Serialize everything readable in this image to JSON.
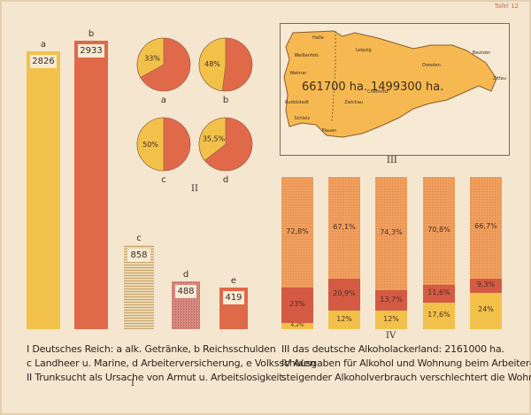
{
  "header": {
    "plate": "Tafel 12"
  },
  "colors": {
    "yellow": "#f2c14a",
    "red": "#e0694a",
    "orange_light": "#f2a15e",
    "red_dark": "#d45a44",
    "stone": "#c9a66b",
    "pink": "#d98a80",
    "map_fill": "#f6b951"
  },
  "chart_data": [
    {
      "type": "bar",
      "label": "I",
      "bars": [
        {
          "letter": "a",
          "value": 2826,
          "label": "2826",
          "color": "#f2c14a",
          "pattern": "solid"
        },
        {
          "letter": "b",
          "value": 2933,
          "label": "2933",
          "color": "#e0694a",
          "pattern": "solid"
        },
        {
          "letter": "c",
          "value": 858,
          "label": "858",
          "color": "#c9a66b",
          "pattern": "lines"
        },
        {
          "letter": "d",
          "value": 488,
          "label": "488",
          "color": "#d98a80",
          "pattern": "dots"
        },
        {
          "letter": "e",
          "value": 419,
          "label": "419",
          "color": "#e0694a",
          "pattern": "solid"
        }
      ],
      "ylim": [
        0,
        2933
      ]
    },
    {
      "type": "pie",
      "label": "II",
      "pies": [
        {
          "letter": "a",
          "value": 33,
          "label": "33%"
        },
        {
          "letter": "b",
          "value": 48,
          "label": "48%"
        },
        {
          "letter": "c",
          "value": 50,
          "label": "50%"
        },
        {
          "letter": "d",
          "value": 35.5,
          "label": "35,5%"
        }
      ]
    },
    {
      "type": "bar",
      "stacked": true,
      "label": "IV",
      "columns": [
        {
          "segments": [
            {
              "value": 4.2,
              "label": "4,2%"
            },
            {
              "value": 23,
              "label": "23%"
            },
            {
              "value": 72.8,
              "label": "72,8%"
            }
          ]
        },
        {
          "segments": [
            {
              "value": 12,
              "label": "12%"
            },
            {
              "value": 20.9,
              "label": "20,9%"
            },
            {
              "value": 67.1,
              "label": "67,1%"
            }
          ]
        },
        {
          "segments": [
            {
              "value": 12,
              "label": "12%"
            },
            {
              "value": 13.7,
              "label": "13,7%"
            },
            {
              "value": 74.3,
              "label": "74,3%"
            }
          ]
        },
        {
          "segments": [
            {
              "value": 17.6,
              "label": "17,6%"
            },
            {
              "value": 11.6,
              "label": "11,6%"
            },
            {
              "value": 70.8,
              "label": "70,8%"
            }
          ]
        },
        {
          "segments": [
            {
              "value": 24,
              "label": "24%"
            },
            {
              "value": 9.3,
              "label": "9,3%"
            },
            {
              "value": 66.7,
              "label": "66,7%"
            }
          ]
        }
      ],
      "segment_colors": [
        "#f2c14a",
        "#d45a44",
        "#f2a15e"
      ]
    }
  ],
  "map": {
    "label": "III",
    "area_left": "661700 ha.",
    "area_right": "1499300 ha.",
    "cities": [
      {
        "name": "Halle",
        "x": 14,
        "y": 9
      },
      {
        "name": "Leipzig",
        "x": 33,
        "y": 18
      },
      {
        "name": "Weißenfels",
        "x": 6,
        "y": 22
      },
      {
        "name": "Dresden",
        "x": 62,
        "y": 30
      },
      {
        "name": "Bautzen",
        "x": 84,
        "y": 20
      },
      {
        "name": "Zittau",
        "x": 93,
        "y": 40
      },
      {
        "name": "Weimar",
        "x": 4,
        "y": 36
      },
      {
        "name": "Rudolstadt",
        "x": 2,
        "y": 58
      },
      {
        "name": "Schleiz",
        "x": 6,
        "y": 70
      },
      {
        "name": "Zwickau",
        "x": 28,
        "y": 58
      },
      {
        "name": "Chemnitz",
        "x": 38,
        "y": 50
      },
      {
        "name": "Plauen",
        "x": 18,
        "y": 80
      }
    ]
  },
  "captions": {
    "left_line1": "I  Deutsches Reich:   a alk. Getränke,  b Reichsschulden",
    "left_line2": "c Landheer u. Marine,  d Arbeiterversicherung,  e Volksschulen",
    "left_line3": "II  Trunksucht als Ursache von Armut u. Arbeitslosigkeit.",
    "right_line1": "III  das deutsche Alkoholackerland:  2161000 ha.",
    "right_line2": "IV  Ausgaben für Alkohol und Wohnung beim Arbeiter-",
    "right_line3": "steigender Alkoholverbrauch verschlechtert die Wohnung."
  }
}
